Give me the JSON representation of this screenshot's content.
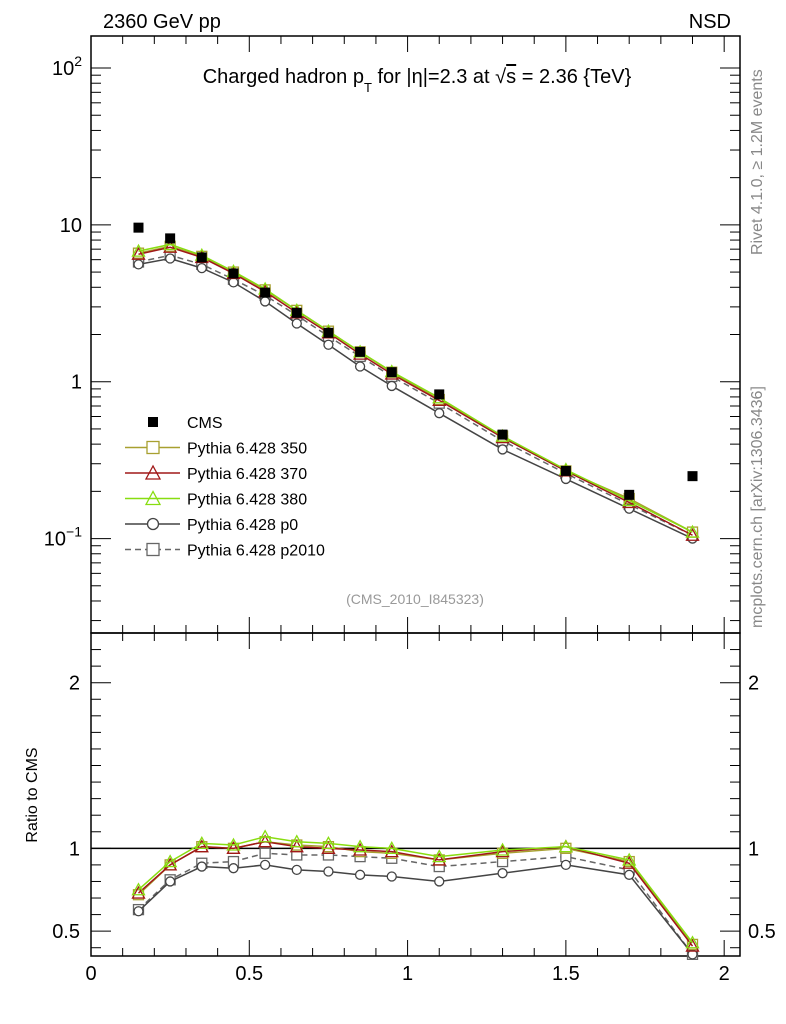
{
  "header": {
    "energy_label": "2360 GeV pp",
    "process_label": "NSD"
  },
  "side": {
    "rivet_label": "Rivet 4.1.0, ≥ 1.2M events",
    "mcplots_label": "mcplots.cern.ch [arXiv:1306.3436]"
  },
  "chart_data": [
    {
      "type": "line",
      "panel": "main",
      "title": "Charged hadron p_T for |η|=2.3 at √s = 2.36 {TeV}",
      "title_parts": {
        "pre": "Charged hadron p",
        "sub": "T",
        "mid": " for |η|=2.3 at ",
        "sqrt": "√",
        "s": "s",
        "post": " = 2.36 {TeV}"
      },
      "reference": "(CMS_2010_I845323)",
      "xlim": [
        0,
        2.05
      ],
      "ylim": [
        0.025,
        160
      ],
      "yscale": "log",
      "ytick_labels": [
        {
          "value": 0.1,
          "base": "10",
          "exp": "−1"
        },
        {
          "value": 1,
          "base": "1",
          "exp": ""
        },
        {
          "value": 10,
          "base": "10",
          "exp": ""
        },
        {
          "value": 100,
          "base": "10",
          "exp": "2"
        }
      ],
      "legend_position": "lower-left",
      "x": [
        0.15,
        0.25,
        0.35,
        0.45,
        0.55,
        0.65,
        0.75,
        0.85,
        0.95,
        1.1,
        1.3,
        1.5,
        1.7,
        1.9
      ],
      "data": {
        "name": "CMS",
        "values": [
          9.6,
          8.2,
          6.2,
          4.9,
          3.7,
          2.75,
          2.05,
          1.55,
          1.15,
          0.83,
          0.46,
          0.27,
          0.19,
          0.25
        ]
      },
      "series": [
        {
          "name": "Pythia 6.428 350",
          "color": "#a8a030",
          "marker": "square",
          "dash": "solid",
          "values": [
            6.6,
            7.3,
            6.3,
            5.0,
            3.85,
            2.85,
            2.1,
            1.55,
            1.15,
            0.77,
            0.45,
            0.27,
            0.18,
            0.11
          ]
        },
        {
          "name": "Pythia 6.428 370",
          "color": "#a01818",
          "marker": "triangle",
          "dash": "solid",
          "values": [
            6.5,
            7.2,
            6.2,
            4.9,
            3.75,
            2.75,
            2.05,
            1.5,
            1.12,
            0.76,
            0.44,
            0.27,
            0.17,
            0.105
          ]
        },
        {
          "name": "Pythia 6.428 380",
          "color": "#88dd10",
          "marker": "triangle",
          "dash": "solid",
          "values": [
            6.8,
            7.5,
            6.4,
            5.05,
            3.9,
            2.85,
            2.1,
            1.55,
            1.16,
            0.79,
            0.45,
            0.275,
            0.175,
            0.11
          ]
        },
        {
          "name": "Pythia 6.428 p0",
          "color": "#444444",
          "marker": "circle",
          "dash": "solid",
          "values": [
            5.6,
            6.1,
            5.3,
            4.3,
            3.25,
            2.35,
            1.72,
            1.25,
            0.94,
            0.63,
            0.37,
            0.24,
            0.155,
            0.1
          ]
        },
        {
          "name": "Pythia 6.428 p2010",
          "color": "#666666",
          "marker": "square",
          "dash": "dashed",
          "values": [
            5.8,
            6.4,
            5.6,
            4.5,
            3.55,
            2.65,
            1.95,
            1.45,
            1.08,
            0.73,
            0.42,
            0.26,
            0.165,
            0.105
          ]
        }
      ]
    },
    {
      "type": "line",
      "panel": "ratio",
      "ylabel": "Ratio to CMS",
      "xlim": [
        0,
        2.05
      ],
      "ylim": [
        0.35,
        2.3
      ],
      "xtick_labels": [
        "0",
        "0.5",
        "1",
        "1.5",
        "2"
      ],
      "xtick_values": [
        0,
        0.5,
        1,
        1.5,
        2
      ],
      "ytick_labels": [
        "0.5",
        "1",
        "2"
      ],
      "ytick_values": [
        0.5,
        1,
        2
      ],
      "x": [
        0.15,
        0.25,
        0.35,
        0.45,
        0.55,
        0.65,
        0.75,
        0.85,
        0.95,
        1.1,
        1.3,
        1.5,
        1.7,
        1.9
      ],
      "series": [
        {
          "name": "Pythia 6.428 350",
          "color": "#a8a030",
          "marker": "square",
          "dash": "solid",
          "values": [
            0.72,
            0.9,
            1.01,
            1.0,
            1.04,
            1.02,
            1.01,
            0.98,
            0.97,
            0.93,
            0.97,
            1.0,
            0.92,
            0.42
          ]
        },
        {
          "name": "Pythia 6.428 370",
          "color": "#a01818",
          "marker": "triangle",
          "dash": "solid",
          "values": [
            0.73,
            0.9,
            1.01,
            1.0,
            1.04,
            1.01,
            1.0,
            0.99,
            0.98,
            0.93,
            0.98,
            1.01,
            0.91,
            0.41
          ]
        },
        {
          "name": "Pythia 6.428 380",
          "color": "#88dd10",
          "marker": "triangle",
          "dash": "solid",
          "values": [
            0.75,
            0.92,
            1.03,
            1.02,
            1.07,
            1.04,
            1.03,
            1.01,
            1.0,
            0.95,
            0.99,
            1.01,
            0.93,
            0.43
          ]
        },
        {
          "name": "Pythia 6.428 p0",
          "color": "#444444",
          "marker": "circle",
          "dash": "solid",
          "values": [
            0.62,
            0.8,
            0.89,
            0.88,
            0.9,
            0.87,
            0.86,
            0.84,
            0.83,
            0.8,
            0.85,
            0.9,
            0.84,
            0.36
          ]
        },
        {
          "name": "Pythia 6.428 p2010",
          "color": "#666666",
          "marker": "square",
          "dash": "dashed",
          "values": [
            0.63,
            0.81,
            0.91,
            0.92,
            0.97,
            0.96,
            0.96,
            0.95,
            0.94,
            0.89,
            0.92,
            0.95,
            0.87,
            0.36
          ]
        }
      ]
    }
  ]
}
